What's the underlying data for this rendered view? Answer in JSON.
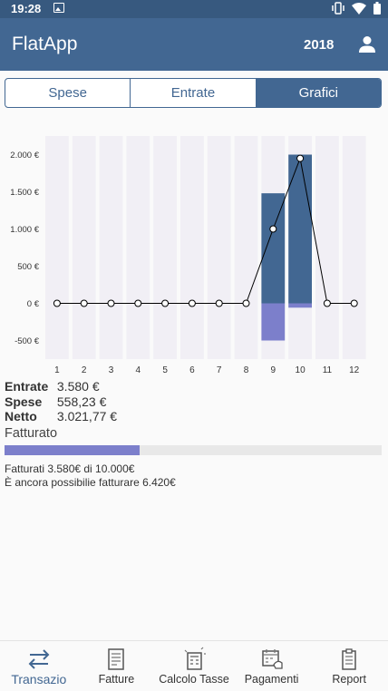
{
  "status_bar": {
    "time": "19:28"
  },
  "app_bar": {
    "title": "FlatApp",
    "year": "2018"
  },
  "tabs": [
    {
      "label": "Spese",
      "active": false
    },
    {
      "label": "Entrate",
      "active": false
    },
    {
      "label": "Grafici",
      "active": true
    }
  ],
  "chart_data": {
    "type": "bar",
    "categories": [
      "1",
      "2",
      "3",
      "4",
      "5",
      "6",
      "7",
      "8",
      "9",
      "10",
      "11",
      "12"
    ],
    "series": [
      {
        "type": "bar",
        "color": "#426792",
        "values": [
          0,
          0,
          0,
          0,
          0,
          0,
          0,
          0,
          1480,
          2000,
          0,
          0
        ]
      },
      {
        "type": "bar",
        "color": "#7c7fcb",
        "values": [
          0,
          0,
          0,
          0,
          0,
          0,
          0,
          0,
          -500,
          -58.23,
          0,
          0
        ]
      },
      {
        "type": "line",
        "color": "#000000",
        "values": [
          0,
          0,
          0,
          0,
          0,
          0,
          0,
          0,
          1000,
          1950,
          0,
          0
        ]
      }
    ],
    "yticks": [
      2000,
      1500,
      1000,
      500,
      0,
      -500
    ],
    "ytick_labels": [
      "2.000 €",
      "1.500 €",
      "1.000 €",
      "500 €",
      "0 €",
      "-500 €"
    ],
    "ylim": [
      -750,
      2250
    ],
    "title": "",
    "xlabel": "",
    "ylabel": "",
    "grid": false,
    "legend": "none"
  },
  "summary": {
    "entrate_label": "Entrate",
    "entrate_value": "3.580 €",
    "spese_label": "Spese",
    "spese_value": "558,23 €",
    "netto_label": "Netto",
    "netto_value": "3.021,77 €"
  },
  "fatturato": {
    "title": "Fatturato",
    "progress": 0.358,
    "line1": "Fatturati 3.580€ di 10.000€",
    "line2": "È ancora possibilie fatturare 6.420€"
  },
  "bottom_nav": [
    {
      "label": "Transazio",
      "icon": "swap-arrows-icon",
      "active": true
    },
    {
      "label": "Fatture",
      "icon": "invoice-icon",
      "active": false
    },
    {
      "label": "Calcolo Tasse",
      "icon": "calculator-icon",
      "active": false
    },
    {
      "label": "Pagamenti",
      "icon": "payment-calendar-icon",
      "active": false
    },
    {
      "label": "Report",
      "icon": "report-icon",
      "active": false
    }
  ],
  "colors": {
    "primary": "#426792",
    "status": "#37597f",
    "accent": "#7c7fcb",
    "chart_bg": "#f1eff5"
  }
}
